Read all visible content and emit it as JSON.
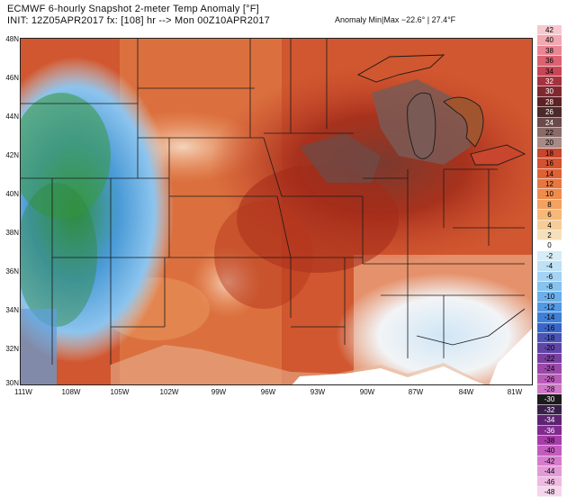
{
  "header": {
    "line1": "ECMWF 6-hourly Snapshot 2-meter Temp Anomaly [°F]",
    "line2": "INIT: 12Z05APR2017 fx: [108] hr --> Mon 00Z10APR2017",
    "anomaly_range": "Anomaly Min|Max −22.6° | 27.4°F"
  },
  "map": {
    "lat_labels": [
      "48N",
      "46N",
      "44N",
      "42N",
      "40N",
      "38N",
      "36N",
      "34N",
      "32N",
      "30N"
    ],
    "lon_labels": [
      "111W",
      "108W",
      "105W",
      "102W",
      "99W",
      "96W",
      "93W",
      "90W",
      "87W",
      "84W",
      "81W"
    ]
  },
  "colorbar": {
    "values": [
      "42",
      "40",
      "38",
      "36",
      "34",
      "32",
      "30",
      "28",
      "26",
      "24",
      "22",
      "20",
      "18",
      "16",
      "14",
      "12",
      "10",
      "8",
      "6",
      "4",
      "2",
      "0",
      "-2",
      "-4",
      "-6",
      "-8",
      "-10",
      "-12",
      "-14",
      "-16",
      "-18",
      "-20",
      "-22",
      "-24",
      "-26",
      "-28",
      "-30",
      "-32",
      "-34",
      "-36",
      "-38",
      "-40",
      "-42",
      "-44",
      "-46",
      "-48"
    ],
    "colors": [
      "#f7c9cf",
      "#f1a9b2",
      "#e98693",
      "#dc6271",
      "#c94555",
      "#a5303e",
      "#7f2830",
      "#5e2224",
      "#4a2a2a",
      "#6b4a48",
      "#8a6b67",
      "#a68a86",
      "#c8462d",
      "#d4522f",
      "#df6235",
      "#e7773f",
      "#ee8c4c",
      "#f3a262",
      "#f6b87a",
      "#f7cd97",
      "#f6e0bb",
      "#ffffff",
      "#d6ecf7",
      "#bfe1f5",
      "#a4d3f3",
      "#86c3ef",
      "#6bb0ea",
      "#5398e2",
      "#3f7fd8",
      "#3a65c8",
      "#4b54b6",
      "#5f45a7",
      "#7a3f9e",
      "#9a49a8",
      "#b85cb8",
      "#cf78c8",
      "#1b1b1b",
      "#3a1f4a",
      "#5c2570",
      "#802b8f",
      "#a63da8",
      "#c25cbd",
      "#d77ccc",
      "#e39bd7",
      "#eebae1",
      "#f5d5eb"
    ]
  }
}
